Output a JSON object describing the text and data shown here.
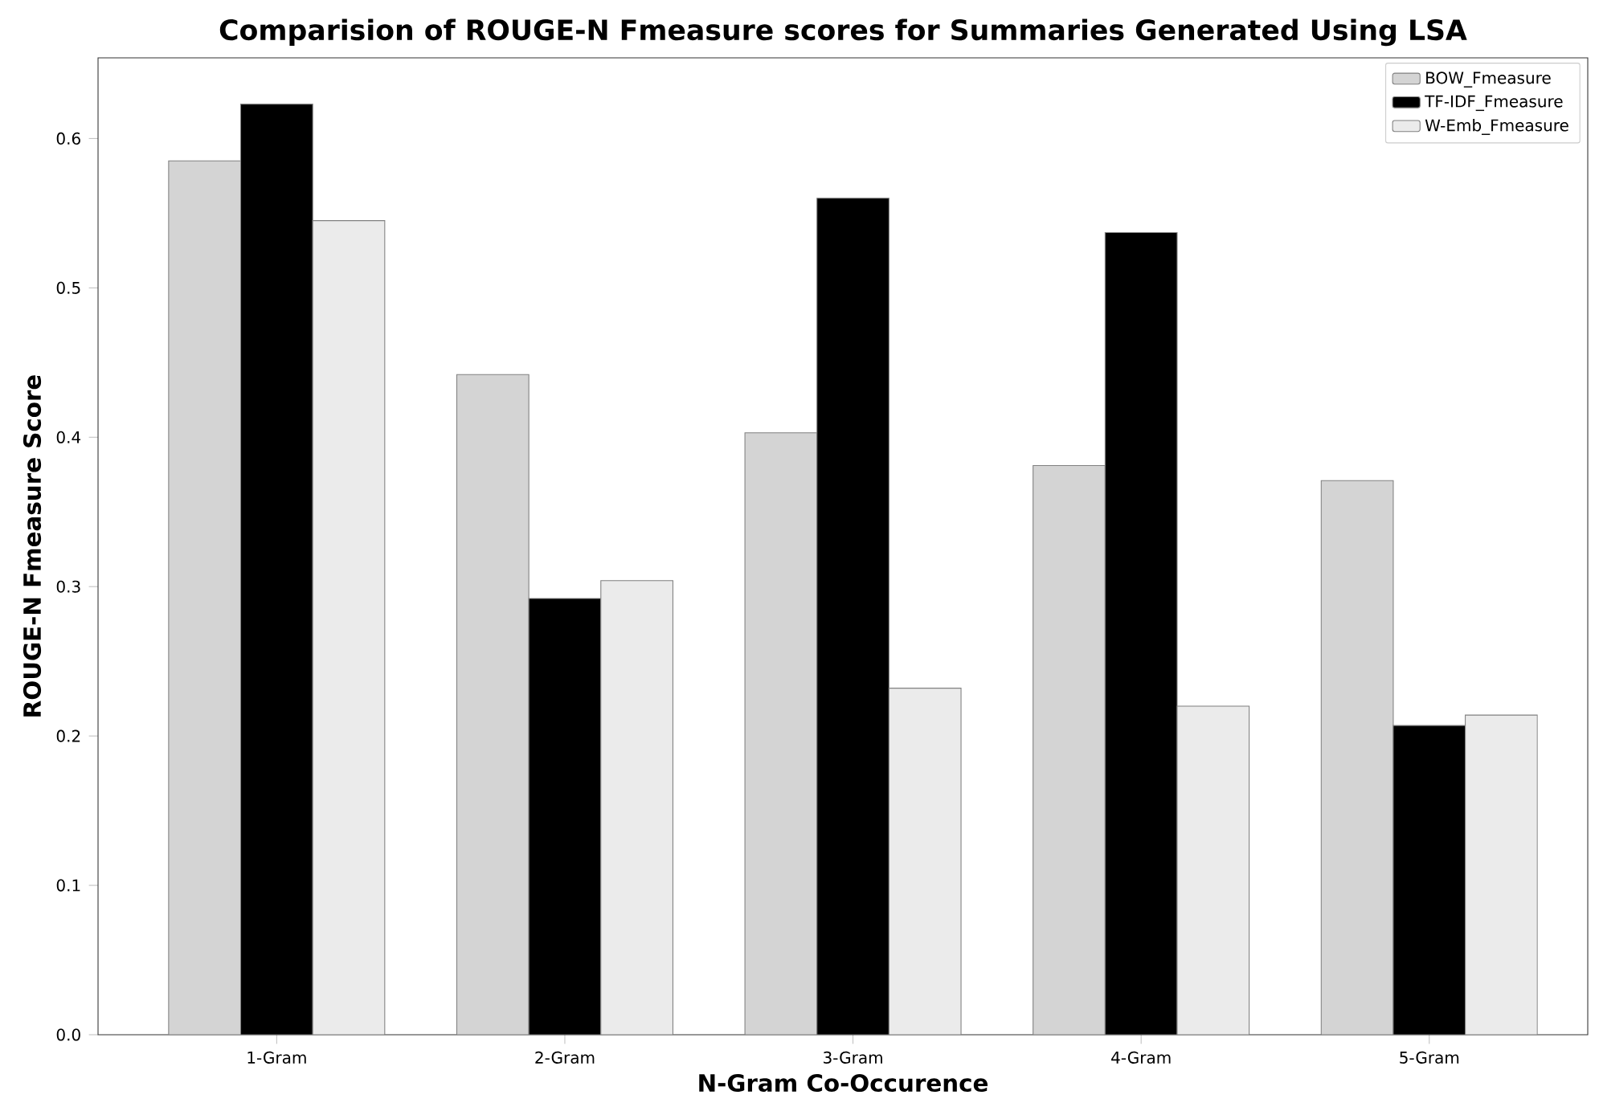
{
  "chart_data": {
    "type": "bar",
    "title": "Comparision of ROUGE-N Fmeasure scores for Summaries Generated Using LSA",
    "xlabel": "N-Gram Co-Occurence",
    "ylabel": "ROUGE-N Fmeasure Score",
    "categories": [
      "1-Gram",
      "2-Gram",
      "3-Gram",
      "4-Gram",
      "5-Gram"
    ],
    "series": [
      {
        "name": "BOW_Fmeasure",
        "color": "#d4d4d4",
        "values": [
          0.585,
          0.442,
          0.403,
          0.381,
          0.371
        ]
      },
      {
        "name": "TF-IDF_Fmeasure",
        "color": "#000000",
        "values": [
          0.623,
          0.292,
          0.56,
          0.537,
          0.207
        ]
      },
      {
        "name": "W-Emb_Fmeasure",
        "color": "#ebebeb",
        "values": [
          0.545,
          0.304,
          0.232,
          0.22,
          0.214
        ]
      }
    ],
    "ylim": [
      0,
      0.654
    ],
    "yticks": [
      {
        "value": 0,
        "label": "0.0"
      },
      0.1,
      0.2,
      0.3,
      0.4,
      0.5,
      0.6
    ],
    "grid": false,
    "legend": "top right"
  }
}
